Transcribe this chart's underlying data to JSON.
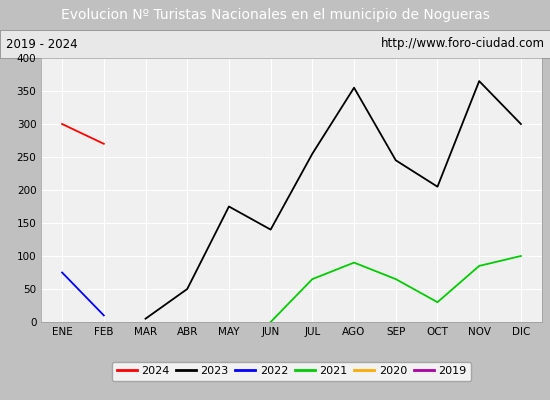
{
  "title": "Evolucion Nº Turistas Nacionales en el municipio de Nogueras",
  "subtitle_left": "2019 - 2024",
  "subtitle_right": "http://www.foro-ciudad.com",
  "x_labels": [
    "ENE",
    "FEB",
    "MAR",
    "ABR",
    "MAY",
    "JUN",
    "JUL",
    "AGO",
    "SEP",
    "OCT",
    "NOV",
    "DIC"
  ],
  "ylim": [
    0,
    400
  ],
  "yticks": [
    0,
    50,
    100,
    150,
    200,
    250,
    300,
    350,
    400
  ],
  "series": {
    "2024": {
      "color": "#ff0000",
      "values": [
        300,
        270,
        null,
        null,
        null,
        null,
        null,
        null,
        null,
        null,
        null,
        null
      ]
    },
    "2023": {
      "color": "#000000",
      "values": [
        null,
        null,
        5,
        50,
        175,
        140,
        255,
        355,
        245,
        205,
        365,
        300
      ]
    },
    "2022": {
      "color": "#0000ff",
      "values": [
        75,
        10,
        null,
        null,
        null,
        null,
        null,
        null,
        null,
        null,
        null,
        null
      ]
    },
    "2021": {
      "color": "#00cc00",
      "values": [
        null,
        null,
        null,
        null,
        null,
        0,
        65,
        90,
        65,
        30,
        85,
        100
      ]
    },
    "2020": {
      "color": "#ffaa00",
      "values": [
        null,
        null,
        null,
        null,
        null,
        null,
        null,
        null,
        null,
        null,
        null,
        null
      ]
    },
    "2019": {
      "color": "#aa00aa",
      "values": [
        null,
        null,
        null,
        null,
        null,
        null,
        null,
        null,
        null,
        null,
        null,
        null
      ]
    }
  },
  "title_bg_color": "#4f81bd",
  "title_font_color": "#ffffff",
  "subtitle_bg_color": "#e8e8e8",
  "plot_bg_color": "#f0f0f0",
  "grid_color": "#ffffff",
  "legend_order": [
    "2024",
    "2023",
    "2022",
    "2021",
    "2020",
    "2019"
  ],
  "outer_bg_color": "#c0c0c0"
}
